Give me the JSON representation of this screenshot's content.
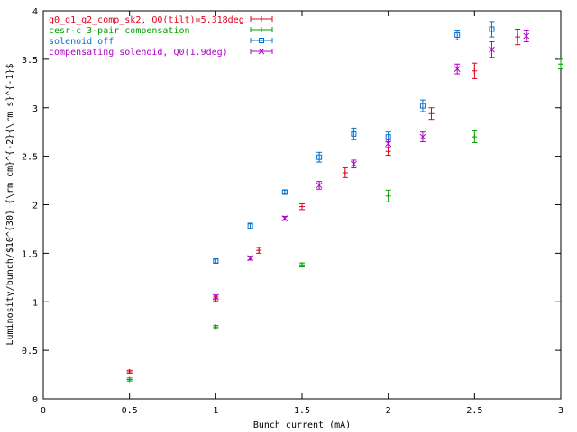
{
  "chart_data": {
    "type": "scatter",
    "title": "",
    "xlabel": "Bunch current (mA)",
    "ylabel": "Luminosity/bunch/$10^{30} {\\rm cm}^{-2}{\\rm s}^{-1}$",
    "xlim": [
      0,
      3
    ],
    "ylim": [
      0,
      4
    ],
    "x_ticks": [
      "0",
      "0.5",
      "1",
      "1.5",
      "2",
      "2.5",
      "3"
    ],
    "y_ticks": [
      "0",
      "0.5",
      "1",
      "1.5",
      "2",
      "2.5",
      "3",
      "3.5",
      "4"
    ],
    "grid": false,
    "legend_position": "top-left",
    "series": [
      {
        "name": "q0_q1_q2_comp_sk2, Q0(tilt)=5.318deg",
        "color": "#e0001c",
        "marker": "plus",
        "points": [
          {
            "x": 0.5,
            "y": 0.28,
            "err": 0.01
          },
          {
            "x": 1.0,
            "y": 1.03,
            "err": 0.02
          },
          {
            "x": 1.25,
            "y": 1.53,
            "err": 0.03
          },
          {
            "x": 1.5,
            "y": 1.98,
            "err": 0.03
          },
          {
            "x": 1.75,
            "y": 2.33,
            "err": 0.05
          },
          {
            "x": 2.0,
            "y": 2.55,
            "err": 0.04
          },
          {
            "x": 2.25,
            "y": 2.94,
            "err": 0.06
          },
          {
            "x": 2.5,
            "y": 3.38,
            "err": 0.08
          },
          {
            "x": 2.75,
            "y": 3.73,
            "err": 0.08
          }
        ]
      },
      {
        "name": "cesr-c 3-pair compensation",
        "color": "#00a000",
        "marker": "plus",
        "points": [
          {
            "x": 0.5,
            "y": 0.2,
            "err": 0.01
          },
          {
            "x": 1.0,
            "y": 0.74,
            "err": 0.01
          },
          {
            "x": 1.5,
            "y": 1.38,
            "err": 0.02
          },
          {
            "x": 2.0,
            "y": 2.09,
            "err": 0.06
          },
          {
            "x": 2.5,
            "y": 2.7,
            "err": 0.06
          },
          {
            "x": 3.0,
            "y": 3.45,
            "err": 0.05
          }
        ]
      },
      {
        "name": "solenoid off",
        "color": "#0070d0",
        "marker": "box",
        "points": [
          {
            "x": 1.0,
            "y": 1.42,
            "err": 0.02
          },
          {
            "x": 1.2,
            "y": 1.78,
            "err": 0.03
          },
          {
            "x": 1.4,
            "y": 2.13,
            "err": 0.02
          },
          {
            "x": 1.6,
            "y": 2.49,
            "err": 0.05
          },
          {
            "x": 1.8,
            "y": 2.73,
            "err": 0.06
          },
          {
            "x": 2.0,
            "y": 2.7,
            "err": 0.05
          },
          {
            "x": 2.2,
            "y": 3.02,
            "err": 0.06
          },
          {
            "x": 2.4,
            "y": 3.75,
            "err": 0.05
          },
          {
            "x": 2.6,
            "y": 3.81,
            "err": 0.08
          }
        ]
      },
      {
        "name": "compensating solenoid, Q0(1.9deg)",
        "color": "#b000c8",
        "marker": "cross",
        "points": [
          {
            "x": 1.0,
            "y": 1.05,
            "err": 0.02
          },
          {
            "x": 1.2,
            "y": 1.45,
            "err": 0.02
          },
          {
            "x": 1.4,
            "y": 1.86,
            "err": 0.02
          },
          {
            "x": 1.6,
            "y": 2.2,
            "err": 0.04
          },
          {
            "x": 1.8,
            "y": 2.42,
            "err": 0.04
          },
          {
            "x": 2.0,
            "y": 2.63,
            "err": 0.04
          },
          {
            "x": 2.2,
            "y": 2.7,
            "err": 0.05
          },
          {
            "x": 2.4,
            "y": 3.4,
            "err": 0.05
          },
          {
            "x": 2.6,
            "y": 3.6,
            "err": 0.08
          },
          {
            "x": 2.8,
            "y": 3.74,
            "err": 0.06
          }
        ]
      }
    ]
  }
}
